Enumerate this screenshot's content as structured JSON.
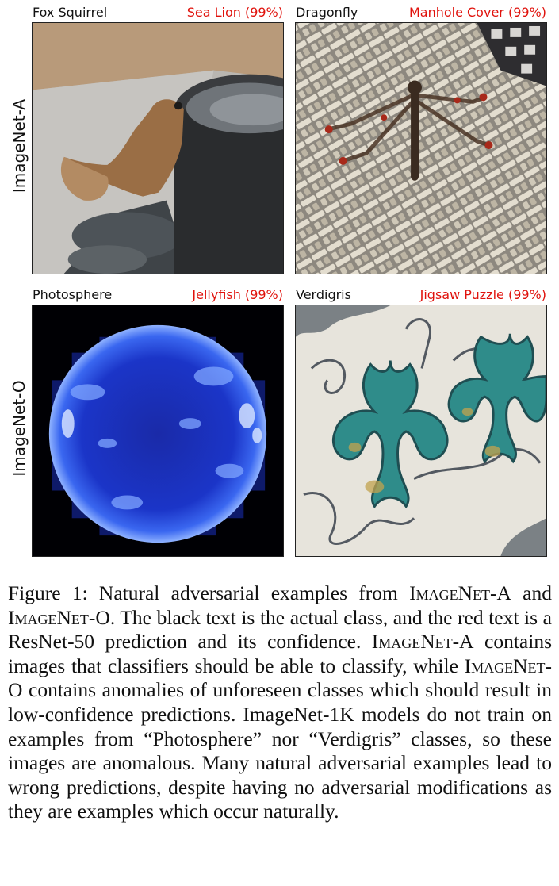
{
  "rows": [
    {
      "label": "ImageNet-A",
      "panels": [
        {
          "true_class": "Fox Squirrel",
          "prediction": "Sea Lion (99%)",
          "image": "squirrel-photo"
        },
        {
          "true_class": "Dragonfly",
          "prediction": "Manhole Cover (99%)",
          "image": "dragonfly-photo"
        }
      ]
    },
    {
      "label": "ImageNet-O",
      "panels": [
        {
          "true_class": "Photosphere",
          "prediction": "Jellyfish (99%)",
          "image": "photosphere-photo"
        },
        {
          "true_class": "Verdigris",
          "prediction": "Jigsaw Puzzle (99%)",
          "image": "verdigris-photo"
        }
      ]
    }
  ],
  "caption": {
    "figure_label": "Figure 1:",
    "part1": "Natural adversarial examples from ",
    "dataset_a": "ImageNet-A",
    "part2": " and ",
    "dataset_o": "ImageNet-O",
    "part3": ". The black text is the actual class, and the red text is a ResNet-50 prediction and its confidence. ",
    "dataset_a2": "ImageNet-A",
    "part4": " contains images that classifiers should be able to classify, while ",
    "dataset_o2": "ImageNet-O",
    "part5": " contains anomalies of unforeseen classes which should result in low-confidence predictions. ImageNet-1K models do not train on examples from “Photosphere” nor “Verdigris” classes, so these images are anomalous. Many natural adversarial examples lead to wrong predictions, despite having no adversarial modifications as they are examples which occur naturally."
  },
  "colors": {
    "prediction_text": "#e0120c",
    "actual_text": "#111111"
  }
}
